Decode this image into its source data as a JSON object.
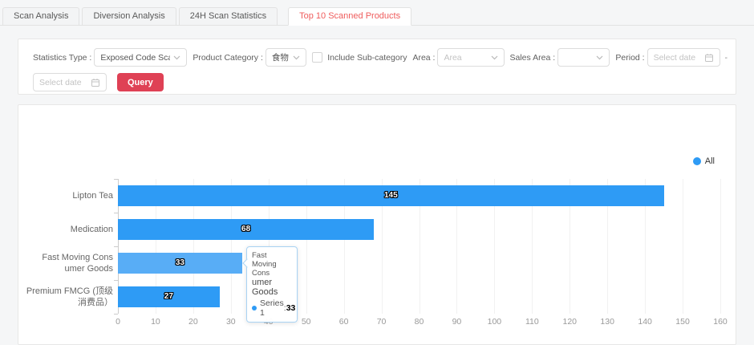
{
  "colors": {
    "bar_blue": "#2e9bf5",
    "bar_highlight": "#58adf6",
    "legend_blue": "#2e9bf5",
    "query_red": "#df4155",
    "tab_active_red": "#ef5c5c",
    "tooltip_border": "#a9d3f3"
  },
  "tabs": {
    "items": [
      {
        "label": "Scan Analysis",
        "active": false
      },
      {
        "label": "Diversion Analysis",
        "active": false
      },
      {
        "label": "24H Scan Statistics",
        "active": false
      },
      {
        "label": "Top 10 Scanned Products",
        "active": true
      }
    ]
  },
  "filter_panel": {
    "statistics_type_label": "Statistics Type :",
    "statistics_type_value": "Exposed Code Scans",
    "product_category_label": "Product Category :",
    "product_category_value": "食物",
    "include_subcategory_label": "Include Sub-category",
    "include_subcategory_checked": false,
    "area_label": "Area :",
    "area_placeholder": "Area",
    "sales_area_label": "Sales Area :",
    "sales_area_value": "",
    "period_label": "Period :",
    "period_start_placeholder": "Select date",
    "period_separator": "-",
    "period_end_placeholder": "Select date",
    "query_button": "Query"
  },
  "chart_data": {
    "type": "bar",
    "orientation": "horizontal",
    "title": "",
    "xlabel": "",
    "ylabel": "",
    "categories": [
      "Lipton Tea",
      "Medication",
      "Fast Moving Consumer Goods",
      "Premium FMCG (顶级消费品）"
    ],
    "category_label_lines": [
      [
        "Lipton Tea"
      ],
      [
        "Medication"
      ],
      [
        "Fast Moving Cons",
        "umer Goods"
      ],
      [
        "Premium FMCG (顶级",
        "消费品）"
      ]
    ],
    "series": [
      {
        "name": "Series 1",
        "values": [
          145,
          68,
          33,
          27
        ]
      }
    ],
    "value_labels": [
      "145",
      "68",
      "33",
      "27"
    ],
    "legend": {
      "entries": [
        "All"
      ],
      "position": "top-right"
    },
    "xlim": [
      0,
      160
    ],
    "x_ticks": [
      0,
      10,
      20,
      30,
      40,
      50,
      60,
      70,
      80,
      90,
      100,
      110,
      120,
      130,
      140,
      150,
      160
    ],
    "grid": true,
    "highlighted_index": 2
  },
  "tooltip": {
    "category_lines": [
      "Fast Moving Cons",
      "umer Goods"
    ],
    "series_name": "Series 1",
    "separator": ":  ",
    "value": "33"
  }
}
